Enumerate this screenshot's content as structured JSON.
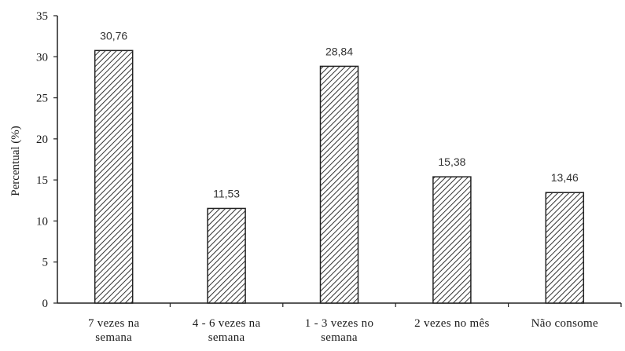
{
  "chart_data": {
    "type": "bar",
    "categories": [
      [
        "7 vezes na",
        "semana"
      ],
      [
        "4 - 6 vezes na",
        "semana"
      ],
      [
        "1 - 3 vezes no",
        "semana"
      ],
      [
        "2 vezes no mês"
      ],
      [
        "Não consome"
      ]
    ],
    "values": [
      30.76,
      11.53,
      28.84,
      15.38,
      13.46
    ],
    "data_labels": [
      "30,76",
      "11,53",
      "28,84",
      "15,38",
      "13,46"
    ],
    "ylabel": "Percentual (%)",
    "xlabel": "",
    "title": "",
    "ylim": [
      0,
      35
    ],
    "yticks": [
      0,
      5,
      10,
      15,
      20,
      25,
      30,
      35
    ],
    "grid": false,
    "legend": "none",
    "bar_fill": "diagonal-hatch",
    "colors": {
      "bar_stroke": "#222222",
      "hatch": "#333333",
      "axis": "#222222"
    }
  }
}
